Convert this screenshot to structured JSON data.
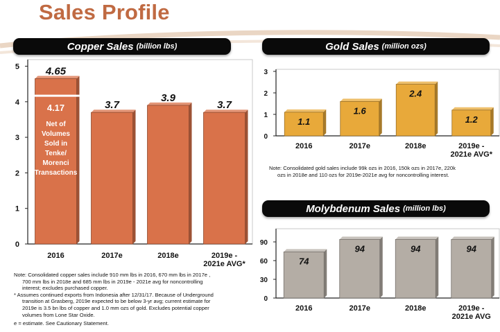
{
  "page": {
    "title": "Sales Profile"
  },
  "colors": {
    "title": "#c06a42",
    "copper": "#d9724a",
    "gold": "#e8a93a",
    "moly": "#b4ada5",
    "banner": "#0a0a0a"
  },
  "copper_note": {
    "l1": "Note:  Consolidated copper sales include 910 mm lbs in 2016, 670 mm lbs in 2017e ,",
    "l2": "700 mm lbs in 2018e and 685 mm lbs in 2019e - 2021e avg for noncontrolling",
    "l3": "interest; excludes purchased copper.",
    "l4": "* Assumes continued exports from Indonesia after 12/31/17. Because of Underground",
    "l5": "transition at Grasberg, 2019e expected to be below 3-yr avg; current estimate for",
    "l6": "2019e is 3.5 bn lbs of copper and 1.0 mm ozs of gold. Excludes potential copper",
    "l7": "volumes from Lone Star Oxide.",
    "l8": "e = estimate. See Cautionary Statement."
  },
  "gold_note": {
    "l1": "Note:  Consolidated gold sales include 99k ozs in 2016, 150k ozs in 2017e, 220k",
    "l2": "ozs in 2018e and 110 ozs for 2019e-2021e avg for noncontrolling interest."
  },
  "chart_data": [
    {
      "type": "bar",
      "title": "Copper Sales",
      "unit": "(billion lbs)",
      "categories": [
        "2016",
        "2017e",
        "2018e",
        "2019e - 2021e AVG*"
      ],
      "category_lines": [
        [
          "2016"
        ],
        [
          "2017e"
        ],
        [
          "2018e"
        ],
        [
          "2019e -",
          "2021e AVG*"
        ]
      ],
      "values": [
        4.65,
        3.7,
        3.9,
        3.7
      ],
      "labels": [
        "4.65",
        "3.7",
        "3.9",
        "3.7"
      ],
      "ylim": [
        0,
        5
      ],
      "yticks": [
        "0",
        "1",
        "2",
        "3",
        "4",
        "5"
      ],
      "inner_annotation": {
        "value": 4.17,
        "label": "4.17",
        "text": [
          "Net of",
          "Volumes",
          "Sold in",
          "Tenke/",
          "Morenci",
          "Transactions"
        ]
      },
      "grid": false
    },
    {
      "type": "bar",
      "title": "Gold Sales",
      "unit": "(million ozs)",
      "categories": [
        "2016",
        "2017e",
        "2018e",
        "2019e - 2021e AVG*"
      ],
      "category_lines": [
        [
          "2016"
        ],
        [
          "2017e"
        ],
        [
          "2018e"
        ],
        [
          "2019e -",
          "2021e AVG*"
        ]
      ],
      "values": [
        1.1,
        1.6,
        2.4,
        1.2
      ],
      "labels": [
        "1.1",
        "1.6",
        "2.4",
        "1.2"
      ],
      "ylim": [
        0,
        3
      ],
      "yticks": [
        "0",
        "1",
        "2",
        "3"
      ],
      "grid": false
    },
    {
      "type": "bar",
      "title": "Molybdenum Sales",
      "unit": "(million lbs)",
      "categories": [
        "2016",
        "2017e",
        "2018e",
        "2019e - 2021e AVG"
      ],
      "category_lines": [
        [
          "2016"
        ],
        [
          "2017e"
        ],
        [
          "2018e"
        ],
        [
          "2019e -",
          "2021e AVG"
        ]
      ],
      "values": [
        74,
        94,
        94,
        94
      ],
      "labels": [
        "74",
        "94",
        "94",
        "94"
      ],
      "ylim": [
        0,
        90
      ],
      "yticks": [
        "0",
        "30",
        "60",
        "90"
      ],
      "grid": false
    }
  ]
}
